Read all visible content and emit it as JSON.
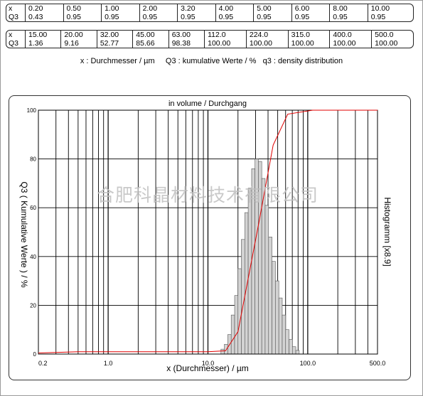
{
  "table1": {
    "row_labels": [
      "x",
      "Q3"
    ],
    "x": [
      "0.20",
      "0.50",
      "1.00",
      "2.00",
      "3.20",
      "4.00",
      "5.00",
      "6.00",
      "8.00",
      "10.00"
    ],
    "q3": [
      "0.43",
      "0.95",
      "0.95",
      "0.95",
      "0.95",
      "0.95",
      "0.95",
      "0.95",
      "0.95",
      "0.95"
    ]
  },
  "table2": {
    "row_labels": [
      "x",
      "Q3"
    ],
    "x": [
      "15.00",
      "20.00",
      "32.00",
      "45.00",
      "63.00",
      "112.0",
      "224.0",
      "315.0",
      "400.0",
      "500.0"
    ],
    "q3": [
      "1.36",
      "9.16",
      "52.77",
      "85.66",
      "98.38",
      "100.00",
      "100.00",
      "100.00",
      "100.00",
      "100.00"
    ]
  },
  "legend": "x : Durchmesser / µm     Q3 : kumulative Werte / %   q3 : density distribution",
  "watermark": "合肥科晶材料技术有限公司",
  "chart_data": {
    "type": "bar",
    "title": "in volume / Durchgang",
    "xlabel": "x (Durchmesser) / µm",
    "ylabel": "Q3 ( Kumulative Werte ) / %",
    "y2label": "Histogramm [x8.9]",
    "x_scale": "log",
    "xlim": [
      0.2,
      500.0
    ],
    "ylim": [
      0,
      100
    ],
    "x_tick_labels": [
      "0.2",
      "1.0",
      "10.0",
      "100.0",
      "500.0"
    ],
    "x_tick_values": [
      0.2,
      1.0,
      10.0,
      100.0,
      500.0
    ],
    "y_tick_labels": [
      "0",
      "20",
      "40",
      "60",
      "80",
      "100"
    ],
    "y_tick_values": [
      0,
      20,
      40,
      60,
      80,
      100
    ],
    "grid": true,
    "histogram": {
      "bin_edges": [
        13.5,
        14.6,
        15.8,
        17.1,
        18.5,
        20.0,
        21.6,
        23.4,
        25.3,
        27.4,
        29.6,
        32.0,
        34.6,
        37.4,
        40.5,
        43.8,
        47.4,
        51.3,
        55.5,
        60.0,
        64.9,
        70.2,
        75.9,
        82.1
      ],
      "values": [
        2,
        4,
        8,
        16,
        24,
        35,
        47,
        58,
        68,
        76,
        80,
        79,
        72,
        61,
        48,
        38,
        30,
        23,
        16,
        10,
        6,
        3,
        1.5
      ]
    },
    "cumulative": {
      "name": "Q3",
      "x": [
        0.2,
        0.5,
        1.0,
        2.0,
        3.2,
        4.0,
        5.0,
        6.0,
        8.0,
        10.0,
        15.0,
        20.0,
        32.0,
        45.0,
        63.0,
        112.0,
        224.0,
        315.0,
        400.0,
        500.0
      ],
      "y": [
        0.43,
        0.95,
        0.95,
        0.95,
        0.95,
        0.95,
        0.95,
        0.95,
        0.95,
        0.95,
        1.36,
        9.16,
        52.77,
        85.66,
        98.38,
        100.0,
        100.0,
        100.0,
        100.0,
        100.0
      ]
    }
  },
  "colors": {
    "curve": "#e00000",
    "bar_fill": "#d3d3d3",
    "bar_stroke": "#555555",
    "watermark": "#c0c0c0"
  }
}
